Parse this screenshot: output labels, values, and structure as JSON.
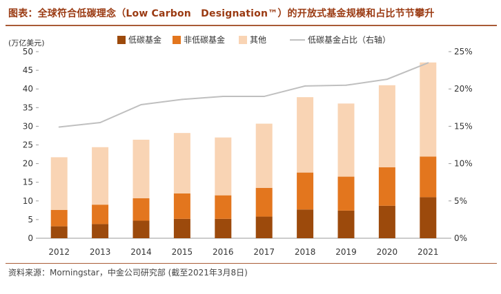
{
  "figure_title": "图表：全球符合低碳理念（Low Carbon　Designation™）的开放式基金规模和占比节节攀升",
  "source_note": "资料来源：Morningstar，中金公司研究部 (截至2021年3月8日)",
  "chart_data": {
    "type": "bar",
    "stacked": true,
    "categories": [
      "2012",
      "2013",
      "2014",
      "2015",
      "2016",
      "2017",
      "2018",
      "2019",
      "2020",
      "2021"
    ],
    "ylabel": "(万亿美元)",
    "ylim": [
      0,
      50
    ],
    "yticks": [
      0,
      5,
      10,
      15,
      20,
      25,
      30,
      35,
      40,
      45,
      50
    ],
    "y2lim": [
      0,
      25
    ],
    "y2ticks": [
      "0%",
      "5%",
      "10%",
      "15%",
      "20%",
      "25%"
    ],
    "legend_position": "top",
    "grid": false,
    "series": [
      {
        "name": "低碳基金",
        "color": "#9c4a0c",
        "values": [
          3.2,
          3.8,
          4.7,
          5.2,
          5.2,
          5.8,
          7.7,
          7.4,
          8.7,
          11.0
        ]
      },
      {
        "name": "非低碳基金",
        "color": "#e3761e",
        "values": [
          4.4,
          5.2,
          6.0,
          6.8,
          6.3,
          7.7,
          9.9,
          9.1,
          10.3,
          10.9
        ]
      },
      {
        "name": "其他",
        "color": "#f9d4b4",
        "values": [
          14.1,
          15.4,
          15.7,
          16.2,
          15.5,
          17.2,
          20.2,
          19.6,
          22.0,
          25.2
        ]
      }
    ],
    "line_series": {
      "name": "低碳基金占比（右轴）",
      "color": "#bfbfbf",
      "axis": "right",
      "values": [
        14.9,
        15.5,
        17.9,
        18.6,
        19.0,
        19.0,
        20.4,
        20.5,
        21.3,
        23.5
      ]
    }
  }
}
